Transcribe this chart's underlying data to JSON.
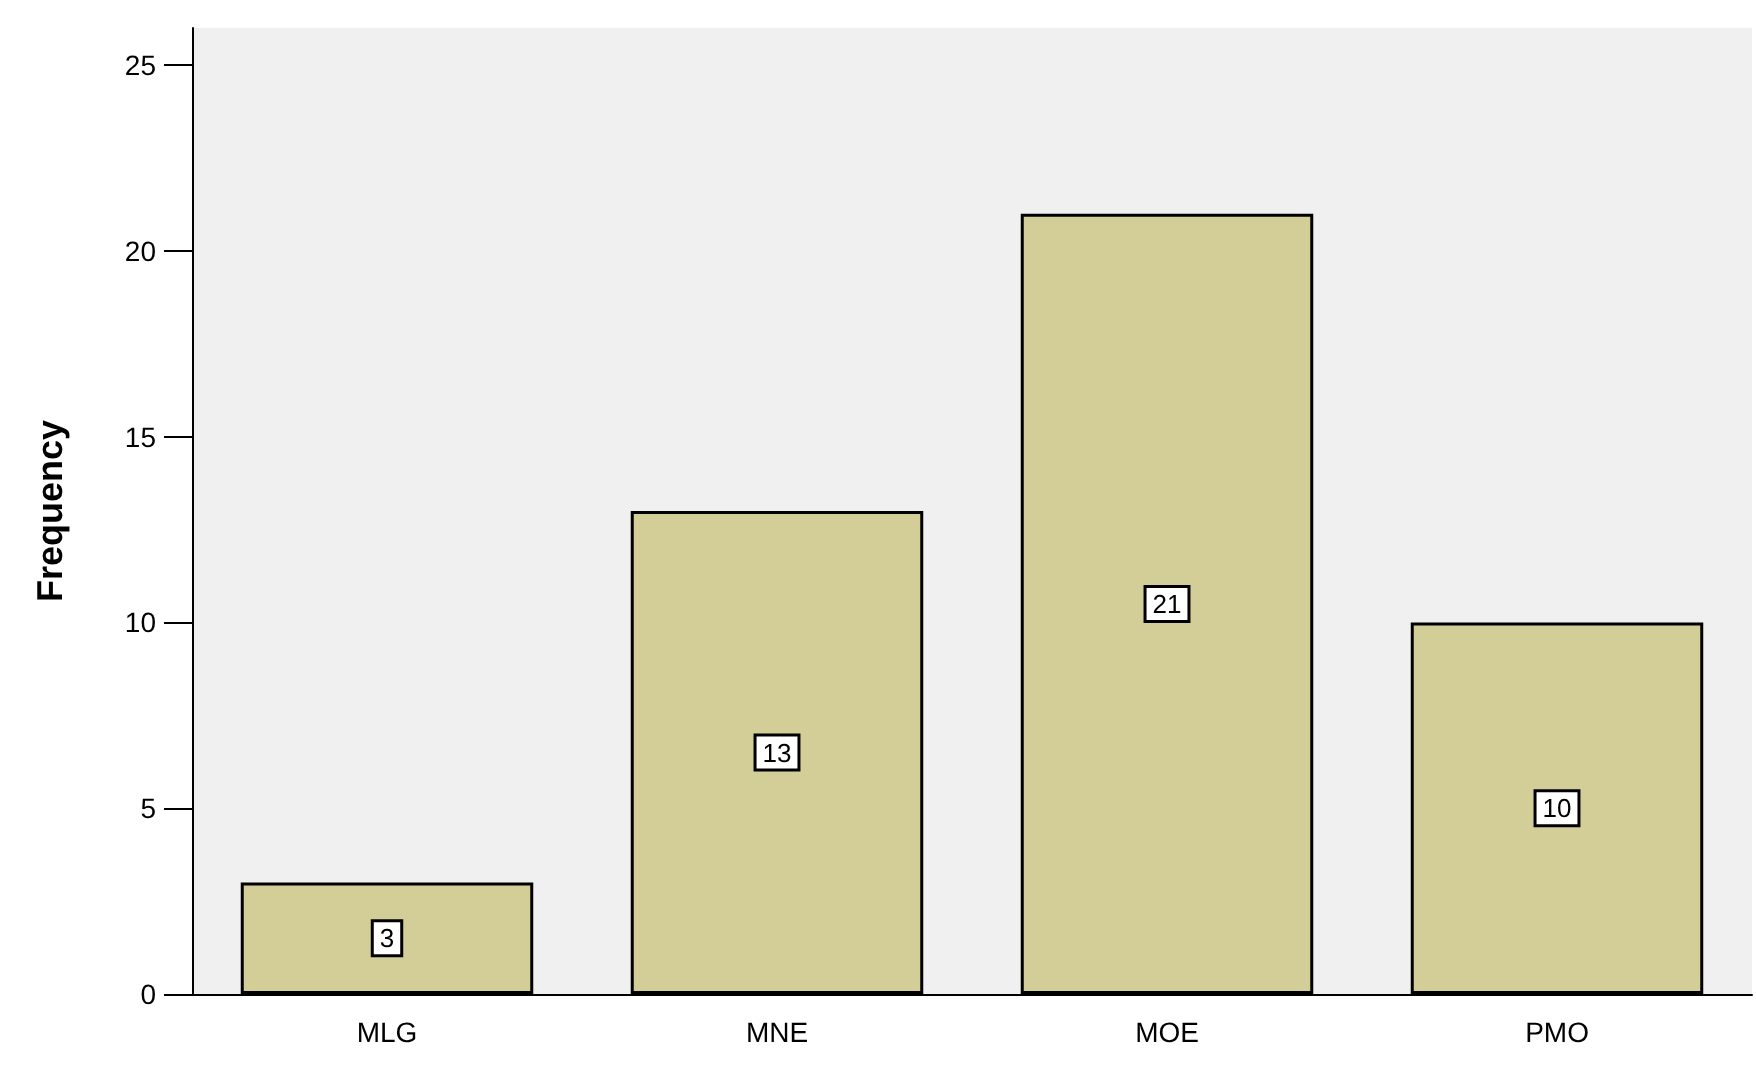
{
  "chart_data": {
    "type": "bar",
    "ylabel": "Frequency",
    "categories": [
      "MLG",
      "MNE",
      "MOE",
      "PMO"
    ],
    "values": [
      3,
      13,
      21,
      10
    ],
    "color": "#d3ce97",
    "ylim": [
      0,
      26
    ],
    "yticks": [
      0,
      5,
      10,
      15,
      20,
      25
    ],
    "grid": false,
    "data_labels": true
  }
}
